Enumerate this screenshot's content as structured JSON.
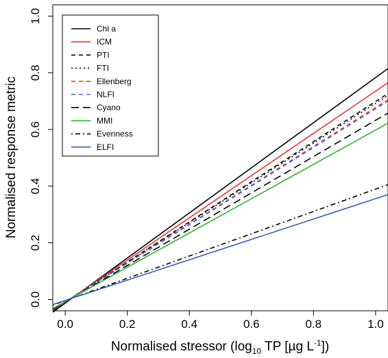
{
  "chart_data": {
    "type": "line",
    "xlabel": {
      "main": "Normalised stressor (log",
      "sub": "10",
      "mid": " TP [µg L",
      "sup": "-1",
      "end": "])"
    },
    "ylabel": "Normalised response metric",
    "xlim": [
      -0.04,
      1.04
    ],
    "ylim": [
      -0.04,
      1.04
    ],
    "xticks": [
      "0.0",
      "0.2",
      "0.4",
      "0.6",
      "0.8",
      "1.0"
    ],
    "yticks": [
      "0.0",
      "0.2",
      "0.4",
      "0.6",
      "0.8",
      "1.0"
    ],
    "grid": false,
    "legend_position": "top-left",
    "series": [
      {
        "name": "Chl a",
        "color": "#000000",
        "dash": "solid",
        "x": [
          -0.04,
          1.04
        ],
        "y": [
          -0.045,
          0.815
        ]
      },
      {
        "name": "ICM",
        "color": "#e03a3a",
        "dash": "solid",
        "x": [
          -0.04,
          1.04
        ],
        "y": [
          -0.04,
          0.765
        ]
      },
      {
        "name": "PTI",
        "color": "#000000",
        "dash": "dashed-short",
        "x": [
          -0.04,
          1.04
        ],
        "y": [
          -0.038,
          0.727
        ]
      },
      {
        "name": "FTI",
        "color": "#000000",
        "dash": "dotted",
        "x": [
          -0.04,
          1.04
        ],
        "y": [
          -0.037,
          0.72
        ]
      },
      {
        "name": "Ellenberg",
        "color": "#e03a3a",
        "dash": "dashed-short",
        "x": [
          -0.04,
          1.04
        ],
        "y": [
          -0.036,
          0.705
        ]
      },
      {
        "name": "NLFI",
        "color": "#3a6fd0",
        "dash": "dashed-short",
        "x": [
          -0.04,
          1.04
        ],
        "y": [
          -0.036,
          0.7
        ]
      },
      {
        "name": "Cyano",
        "color": "#000000",
        "dash": "dashed-long",
        "x": [
          -0.04,
          1.04
        ],
        "y": [
          -0.034,
          0.658
        ]
      },
      {
        "name": "MMI",
        "color": "#33b033",
        "dash": "solid",
        "x": [
          -0.04,
          1.04
        ],
        "y": [
          -0.032,
          0.622
        ]
      },
      {
        "name": "Evenness",
        "color": "#000000",
        "dash": "dotdash",
        "x": [
          -0.04,
          1.04
        ],
        "y": [
          -0.02,
          0.405
        ]
      },
      {
        "name": "ELFI",
        "color": "#3a5fb0",
        "dash": "solid",
        "x": [
          -0.04,
          1.04
        ],
        "y": [
          -0.018,
          0.37
        ]
      }
    ]
  }
}
